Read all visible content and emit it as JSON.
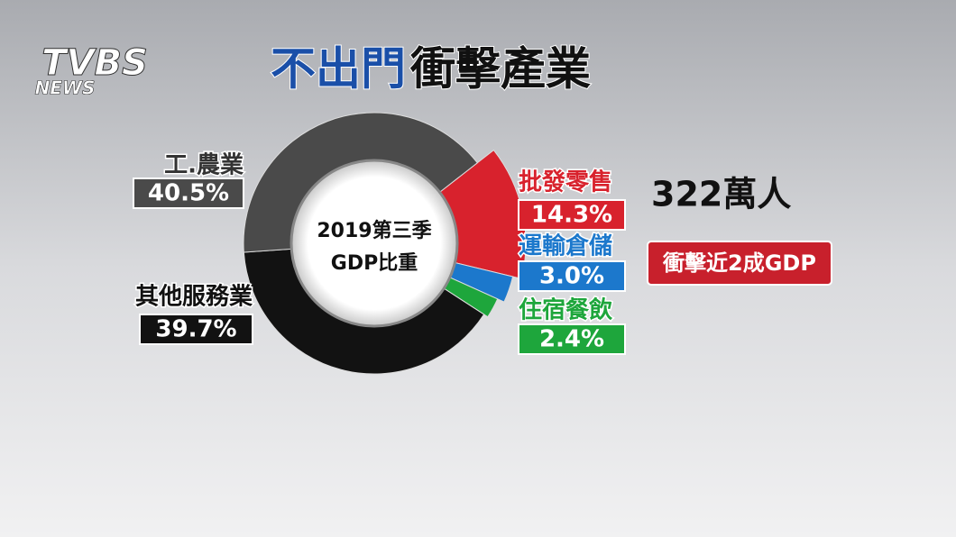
{
  "logo": {
    "brand": "TVBS",
    "sub": "NEWS"
  },
  "chart_data": {
    "type": "pie",
    "title": [
      "不出門",
      "衝擊產業"
    ],
    "center_label": [
      "2019第三季",
      "GDP比重"
    ],
    "categories": [
      "工.農業",
      "其他服務業",
      "批發零售",
      "運輸倉儲",
      "住宿餐飲"
    ],
    "values": [
      40.5,
      39.7,
      14.3,
      3.0,
      2.4
    ],
    "value_labels": [
      "40.5%",
      "39.7%",
      "14.3%",
      "3.0%",
      "2.4%"
    ],
    "colors": [
      "#4a4a4a",
      "#121212",
      "#d8222d",
      "#1c78cc",
      "#1ea63c"
    ],
    "annotations": [
      "322萬人",
      "衝擊近2成GDP"
    ]
  }
}
